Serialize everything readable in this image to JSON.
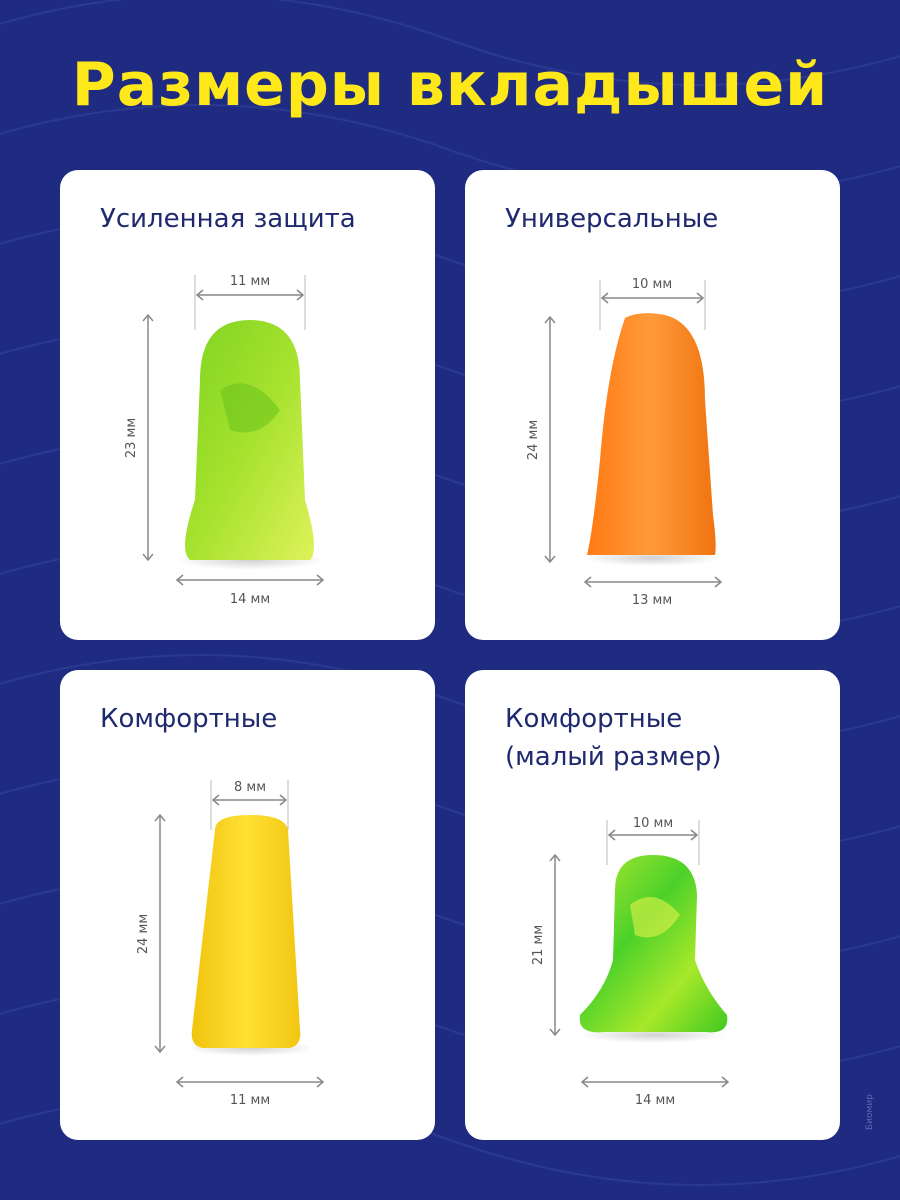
{
  "title": "Размеры вкладышей",
  "cards": [
    {
      "title": "Усиленная защита",
      "subtitle": "",
      "top_width": "11 мм",
      "height": "23 мм",
      "bottom_width": "14 мм",
      "color": "#9be023"
    },
    {
      "title": "Универсальные",
      "subtitle": "",
      "top_width": "10 мм",
      "height": "24 мм",
      "bottom_width": "13 мм",
      "color": "#ff8a1e"
    },
    {
      "title": "Комфортные",
      "subtitle": "",
      "top_width": "8 мм",
      "height": "24 мм",
      "bottom_width": "11 мм",
      "color": "#f7d21a"
    },
    {
      "title": "Комфортные",
      "subtitle": "(малый размер)",
      "top_width": "10 мм",
      "height": "21 мм",
      "bottom_width": "14 мм",
      "color": "#5fd42a"
    }
  ],
  "watermark": "Биомир"
}
